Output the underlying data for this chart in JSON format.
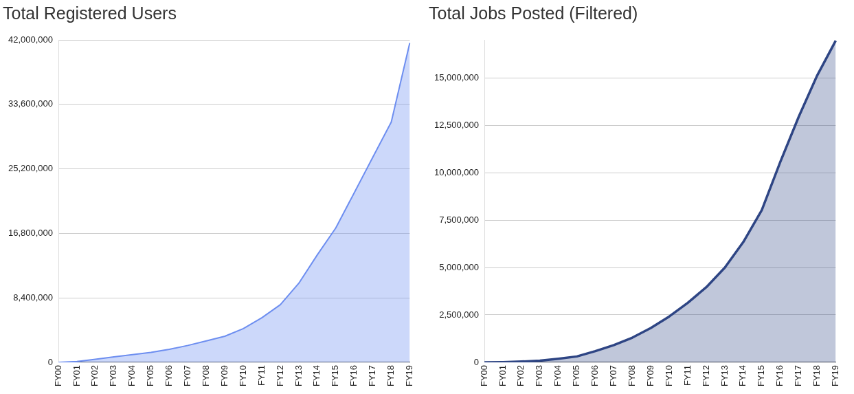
{
  "chart_data": [
    {
      "type": "area",
      "title": "Total Registered Users",
      "categories": [
        "FY00",
        "FY01",
        "FY02",
        "FY03",
        "FY04",
        "FY05",
        "FY06",
        "FY07",
        "FY08",
        "FY09",
        "FY10",
        "FY11",
        "FY12",
        "FY13",
        "FY14",
        "FY15",
        "FY16",
        "FY17",
        "FY18",
        "FY19"
      ],
      "series": [
        {
          "color": "#6d8ef0",
          "values": [
            0,
            100000,
            400000,
            700000,
            1000000,
            1300000,
            1700000,
            2200000,
            2800000,
            3400000,
            4400000,
            5800000,
            7500000,
            10300000,
            14000000,
            17500000,
            22100000,
            26700000,
            31300000,
            41600000
          ]
        }
      ],
      "ylim": [
        0,
        42000000
      ],
      "yticks": [
        0,
        {
          "value": 8400000,
          "label": "8,400,000"
        },
        {
          "value": 16800000,
          "label": "16,800,000"
        },
        {
          "value": 25200000,
          "label": "25,200,000"
        },
        {
          "value": 33600000,
          "label": "33,600,000"
        },
        {
          "value": 42000000,
          "label": "42,000,000"
        }
      ],
      "grid": "y",
      "legend": false
    },
    {
      "type": "area",
      "title": "Total Jobs Posted (Filtered)",
      "categories": [
        "FY00",
        "FY01",
        "FY02",
        "FY03",
        "FY04",
        "FY05",
        "FY06",
        "FY07",
        "FY08",
        "FY09",
        "FY10",
        "FY11",
        "FY12",
        "FY13",
        "FY14",
        "FY15",
        "FY16",
        "FY17",
        "FY18",
        "FY19"
      ],
      "series": [
        {
          "color": "#2e4584",
          "values": [
            0,
            10000,
            40000,
            90000,
            190000,
            310000,
            590000,
            910000,
            1300000,
            1810000,
            2420000,
            3140000,
            3960000,
            4990000,
            6340000,
            8020000,
            10560000,
            12950000,
            15130000,
            16960000
          ]
        }
      ],
      "ylim": [
        0,
        17000000
      ],
      "yticks": [
        0,
        {
          "value": 2500000,
          "label": "2,500,000"
        },
        {
          "value": 5000000,
          "label": "5,000,000"
        },
        {
          "value": 7500000,
          "label": "7,500,000"
        },
        {
          "value": 10000000,
          "label": "10,000,000"
        },
        {
          "value": 12500000,
          "label": "12,500,000"
        },
        {
          "value": 15000000,
          "label": "15,000,000"
        }
      ],
      "grid": "y",
      "legend": false
    }
  ]
}
